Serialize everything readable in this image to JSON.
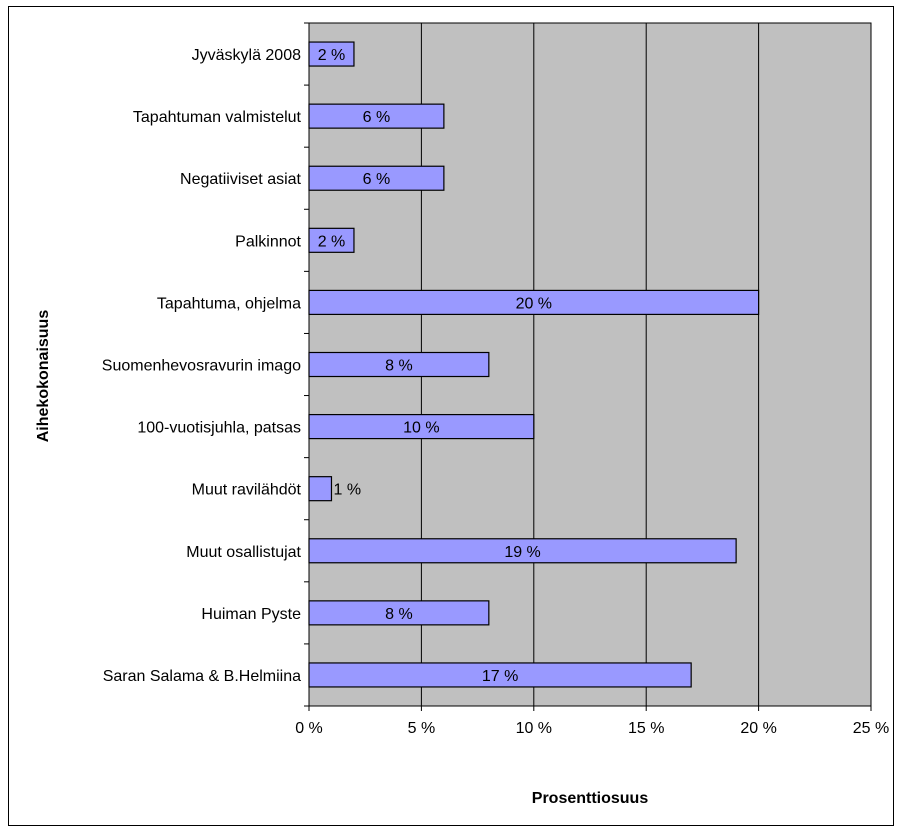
{
  "chart_data": {
    "type": "bar",
    "orientation": "horizontal",
    "title": "",
    "xlabel": "Prosenttiosuus",
    "ylabel": "Aihekokonaisuus",
    "categories": [
      "Jyväskylä 2008",
      "Tapahtuman valmistelut",
      "Negatiiviset asiat",
      "Palkinnot",
      "Tapahtuma, ohjelma",
      "Suomenhevosravurin imago",
      "100-vuotisjuhla, patsas",
      "Muut ravilähdöt",
      "Muut osallistujat",
      "Huiman Pyste",
      "Saran Salama & B.Helmiina"
    ],
    "values": [
      2,
      6,
      6,
      2,
      20,
      8,
      10,
      1,
      19,
      8,
      17
    ],
    "data_labels": [
      "2 %",
      "6 %",
      "6 %",
      "2 %",
      "20 %",
      "8 %",
      "10 %",
      "1 %",
      "19 %",
      "8 %",
      "17 %"
    ],
    "xlim": [
      0,
      25
    ],
    "xticks": [
      0,
      5,
      10,
      15,
      20,
      25
    ],
    "xtick_labels": [
      "0 %",
      "5 %",
      "10 %",
      "15 %",
      "20 %",
      "25 %"
    ],
    "grid": "vertical",
    "legend": "none",
    "colors": {
      "bar_fill": "#9999ff",
      "bar_stroke": "#000000",
      "plot_background": "#c0c0c0",
      "gridline": "#000000"
    }
  }
}
